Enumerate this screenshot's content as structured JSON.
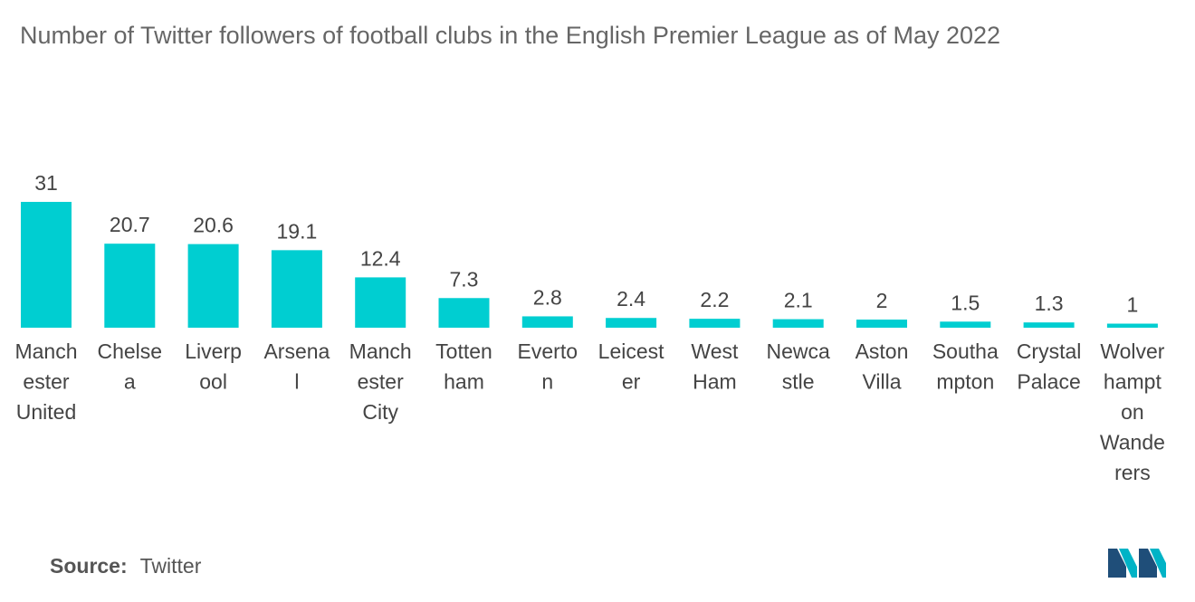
{
  "chart_data": {
    "type": "bar",
    "title": "Number of Twitter followers of football clubs in the English Premier League as of May 2022",
    "categories": [
      "Manchester United",
      "Chelsea",
      "Liverpool",
      "Arsenal",
      "Manchester City",
      "Tottenham",
      "Everton",
      "Leicester",
      "West Ham",
      "Newcastle",
      "Aston Villa",
      "Southampton",
      "Crystal Palace",
      "Wolverhampton Wanderers"
    ],
    "category_lines": [
      [
        "Manch",
        "ester",
        "United"
      ],
      [
        "Chelse",
        "a"
      ],
      [
        "Liverp",
        "ool"
      ],
      [
        "Arsena",
        "l"
      ],
      [
        "Manch",
        "ester",
        "City"
      ],
      [
        "Totten",
        "ham"
      ],
      [
        "Everto",
        "n"
      ],
      [
        "Leicest",
        "er"
      ],
      [
        "West",
        "Ham"
      ],
      [
        "Newca",
        "stle"
      ],
      [
        "Aston",
        "Villa"
      ],
      [
        "Southa",
        "mpton"
      ],
      [
        "Crystal",
        "Palace"
      ],
      [
        "Wolver",
        "hampt",
        "on",
        "Wande",
        "rers"
      ]
    ],
    "values": [
      31,
      20.7,
      20.6,
      19.1,
      12.4,
      7.3,
      2.8,
      2.4,
      2.2,
      2.1,
      2,
      1.5,
      1.3,
      1
    ],
    "value_labels": [
      "31",
      "20.7",
      "20.6",
      "19.1",
      "12.4",
      "7.3",
      "2.8",
      "2.4",
      "2.2",
      "2.1",
      "2",
      "1.5",
      "1.3",
      "1"
    ],
    "ylim": [
      0,
      31
    ],
    "grid": false,
    "bar_color": "#00CED1"
  },
  "source": {
    "label": "Source:",
    "value": "Twitter"
  },
  "logo": {
    "icon": "mordor-intelligence-logo-icon",
    "colors": [
      "#1F4E79",
      "#00B3C6"
    ]
  }
}
